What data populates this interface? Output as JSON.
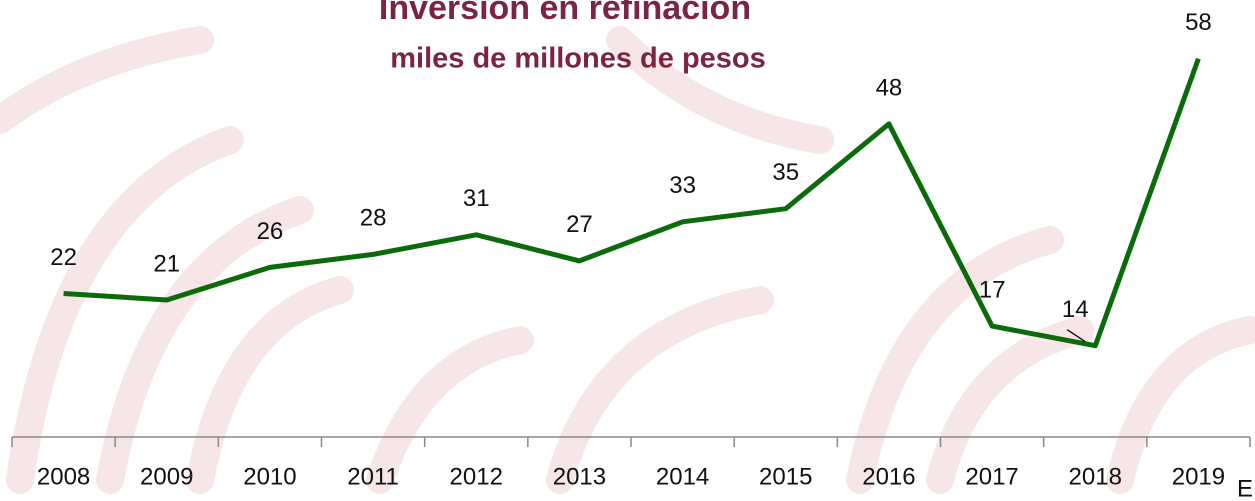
{
  "chart_data": {
    "type": "line",
    "title": "Inversión en refinación",
    "subtitle": "miles de millones de pesos",
    "categories": [
      "2008",
      "2009",
      "2010",
      "2011",
      "2012",
      "2013",
      "2014",
      "2015",
      "2016",
      "2017",
      "2018",
      "2019"
    ],
    "series": [
      {
        "name": "Inversión",
        "color": "#0b6b0b",
        "values": [
          22,
          21,
          26,
          28,
          31,
          27,
          33,
          35,
          48,
          17,
          14,
          58
        ]
      }
    ],
    "ylim": [
      0,
      67
    ],
    "annotation": "E"
  }
}
